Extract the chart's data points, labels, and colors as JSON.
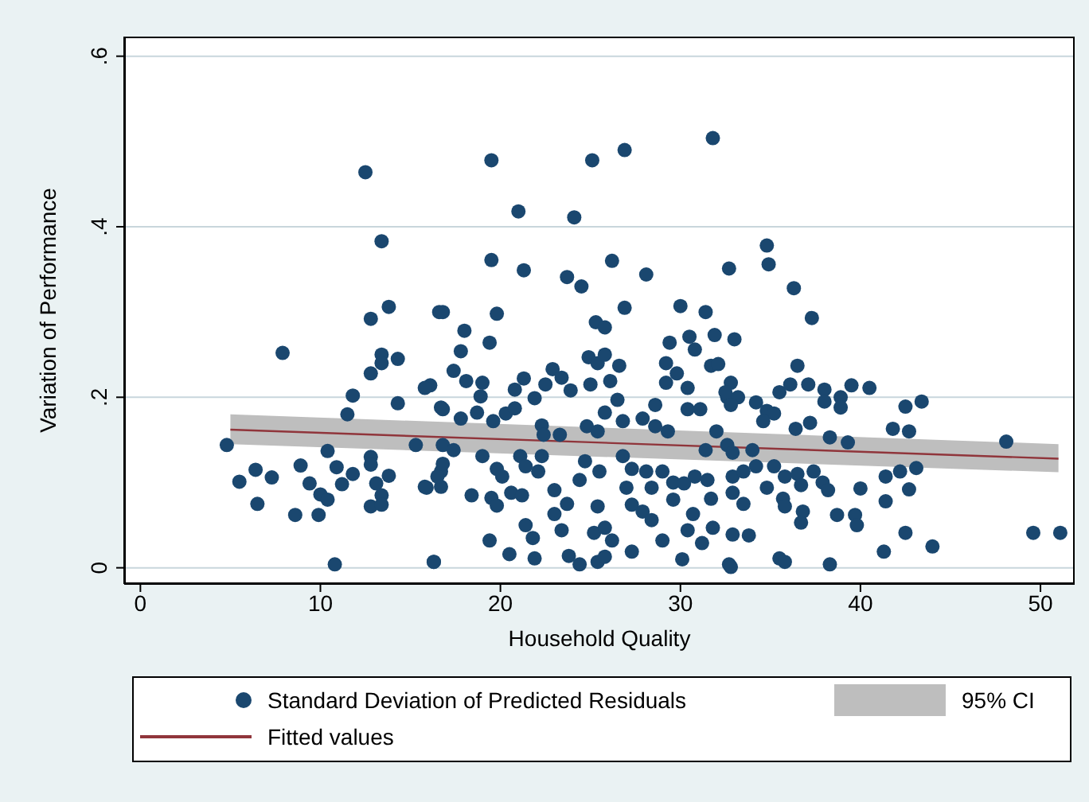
{
  "chart_data": {
    "type": "scatter",
    "xlabel": "Household Quality",
    "ylabel": "Variation of Performance",
    "xlim": [
      -0.9,
      51.9
    ],
    "ylim": [
      -0.019,
      0.623
    ],
    "xticks": [
      0,
      10,
      20,
      30,
      40,
      50
    ],
    "yticks": [
      {
        "value": 0,
        "label": "0"
      },
      {
        "value": 0.2,
        "label": ".2"
      },
      {
        "value": 0.4,
        "label": ".4"
      },
      {
        "value": 0.6,
        "label": ".6"
      }
    ],
    "grid": "y",
    "legend": "bottom",
    "marker": "circle",
    "series": [
      {
        "name": "Standard Deviation of Predicted Residuals",
        "color": "#1a476f",
        "x": [
          12.5,
          13.4,
          13.8,
          12.8,
          7.9,
          13.4,
          14.3,
          13.4,
          12.8,
          11.8,
          11.5,
          14.3,
          16.6,
          4.8,
          5.5,
          6.4,
          7.3,
          6.5,
          8.6,
          8.9,
          9.4,
          10.0,
          10.4,
          9.9,
          10.8,
          10.4,
          10.9,
          11.2,
          11.8,
          12.8,
          12.8,
          13.1,
          13.4,
          12.8,
          13.4,
          13.8,
          15.3,
          15.9,
          16.3,
          16.7,
          16.7,
          16.7,
          19.5,
          21.0,
          24.1,
          25.1,
          26.9,
          31.8,
          19.5,
          21.3,
          23.7,
          24.5,
          26.2,
          28.1,
          32.7,
          16.8,
          18.0,
          17.8,
          19.4,
          19.8,
          25.3,
          25.8,
          26.9,
          30.0,
          31.4,
          29.4,
          30.5,
          30.8,
          31.9,
          17.4,
          18.1,
          19.0,
          16.1,
          15.8,
          16.8,
          18.9,
          20.8,
          21.3,
          21.9,
          22.9,
          23.4,
          23.9,
          22.5,
          25.0,
          24.9,
          25.4,
          25.8,
          26.6,
          26.1,
          25.8,
          26.5,
          29.2,
          29.2,
          29.8,
          30.4,
          28.6,
          31.7,
          32.1,
          32.6,
          18.7,
          19.6,
          20.3,
          20.8,
          17.8,
          16.8,
          22.3,
          24.8,
          25.4,
          26.8,
          27.9,
          28.6,
          29.3,
          30.4,
          31.1,
          32.0,
          17.4,
          16.8,
          16.5,
          15.8,
          18.4,
          19.0,
          19.8,
          20.1,
          19.5,
          19.8,
          20.6,
          21.2,
          21.1,
          21.4,
          22.1,
          22.3,
          19.4,
          20.5,
          21.9,
          16.3,
          21.4,
          21.8,
          23.0,
          23.0,
          23.7,
          23.4,
          23.8,
          24.4,
          24.4,
          24.7,
          25.5,
          25.4,
          25.2,
          25.8,
          26.2,
          25.4,
          25.8,
          26.8,
          27.3,
          27.0,
          27.3,
          27.9,
          27.3,
          28.1,
          28.4,
          29.0,
          28.4,
          29.0,
          30.1,
          29.6,
          30.2,
          30.8,
          29.6,
          30.7,
          30.4,
          31.2,
          31.5,
          31.7,
          31.8,
          32.7,
          31.4,
          32.6,
          22.4,
          23.3,
          34.8,
          34.9,
          36.3,
          37.3,
          33.0,
          36.5,
          32.8,
          32.5,
          33.2,
          32.8,
          34.2,
          34.8,
          35.2,
          34.6,
          35.5,
          36.1,
          37.1,
          38.0,
          38.0,
          38.9,
          38.9,
          39.5,
          40.5,
          42.5,
          43.4,
          36.4,
          37.2,
          38.3,
          39.3,
          41.8,
          42.7,
          48.1,
          32.9,
          33.5,
          34.2,
          34.8,
          32.9,
          33.5,
          35.2,
          35.8,
          36.5,
          36.7,
          37.4,
          37.9,
          38.2,
          35.7,
          35.8,
          36.8,
          36.7,
          38.7,
          39.7,
          39.8,
          40.0,
          41.4,
          41.4,
          42.2,
          43.1,
          42.7,
          42.5,
          44.0,
          41.3,
          49.6,
          51.1,
          32.9,
          33.8,
          32.8,
          35.5,
          35.8,
          38.3,
          32.9,
          34.0
        ],
        "values": [
          0.464,
          0.383,
          0.306,
          0.292,
          0.252,
          0.25,
          0.245,
          0.24,
          0.228,
          0.202,
          0.18,
          0.193,
          0.3,
          0.144,
          0.101,
          0.115,
          0.106,
          0.075,
          0.062,
          0.12,
          0.099,
          0.086,
          0.08,
          0.062,
          0.004,
          0.137,
          0.118,
          0.098,
          0.11,
          0.13,
          0.121,
          0.099,
          0.085,
          0.072,
          0.074,
          0.108,
          0.144,
          0.094,
          0.007,
          0.188,
          0.113,
          0.095,
          0.478,
          0.418,
          0.411,
          0.478,
          0.49,
          0.504,
          0.361,
          0.349,
          0.341,
          0.33,
          0.36,
          0.344,
          0.351,
          0.3,
          0.278,
          0.254,
          0.264,
          0.298,
          0.288,
          0.282,
          0.305,
          0.307,
          0.3,
          0.264,
          0.271,
          0.256,
          0.273,
          0.231,
          0.219,
          0.217,
          0.214,
          0.211,
          0.186,
          0.201,
          0.209,
          0.222,
          0.199,
          0.233,
          0.223,
          0.208,
          0.215,
          0.215,
          0.247,
          0.24,
          0.25,
          0.237,
          0.219,
          0.182,
          0.197,
          0.24,
          0.217,
          0.228,
          0.211,
          0.191,
          0.237,
          0.239,
          0.2,
          0.182,
          0.172,
          0.181,
          0.187,
          0.175,
          0.144,
          0.167,
          0.166,
          0.16,
          0.172,
          0.175,
          0.166,
          0.16,
          0.186,
          0.186,
          0.16,
          0.138,
          0.122,
          0.107,
          0.095,
          0.085,
          0.131,
          0.116,
          0.107,
          0.082,
          0.073,
          0.088,
          0.085,
          0.131,
          0.119,
          0.113,
          0.131,
          0.032,
          0.016,
          0.011,
          0.007,
          0.05,
          0.035,
          0.091,
          0.063,
          0.075,
          0.044,
          0.014,
          0.004,
          0.103,
          0.125,
          0.113,
          0.072,
          0.041,
          0.047,
          0.032,
          0.007,
          0.013,
          0.131,
          0.116,
          0.094,
          0.074,
          0.066,
          0.019,
          0.113,
          0.094,
          0.113,
          0.056,
          0.032,
          0.01,
          0.1,
          0.099,
          0.107,
          0.08,
          0.063,
          0.044,
          0.029,
          0.103,
          0.081,
          0.047,
          0.004,
          0.138,
          0.144,
          0.156,
          0.156,
          0.378,
          0.356,
          0.328,
          0.293,
          0.268,
          0.237,
          0.217,
          0.206,
          0.2,
          0.191,
          0.194,
          0.184,
          0.181,
          0.172,
          0.206,
          0.215,
          0.215,
          0.209,
          0.195,
          0.2,
          0.188,
          0.214,
          0.211,
          0.189,
          0.195,
          0.163,
          0.17,
          0.153,
          0.147,
          0.163,
          0.16,
          0.148,
          0.107,
          0.113,
          0.119,
          0.094,
          0.088,
          0.075,
          0.119,
          0.107,
          0.11,
          0.097,
          0.113,
          0.1,
          0.091,
          0.081,
          0.072,
          0.066,
          0.053,
          0.062,
          0.062,
          0.05,
          0.093,
          0.107,
          0.078,
          0.113,
          0.117,
          0.092,
          0.041,
          0.025,
          0.019,
          0.041,
          0.041,
          0.039,
          0.038,
          0.001,
          0.011,
          0.007,
          0.004,
          0.135,
          0.138
        ]
      },
      {
        "type": "line",
        "name": "Fitted values",
        "color": "#90353b",
        "marker": "none",
        "x": [
          5,
          51
        ],
        "values": [
          0.162,
          0.128
        ],
        "lower": [
          0.145,
          0.112
        ],
        "upper": [
          0.18,
          0.145
        ]
      }
    ],
    "annotations": [
      "95% CI"
    ]
  }
}
